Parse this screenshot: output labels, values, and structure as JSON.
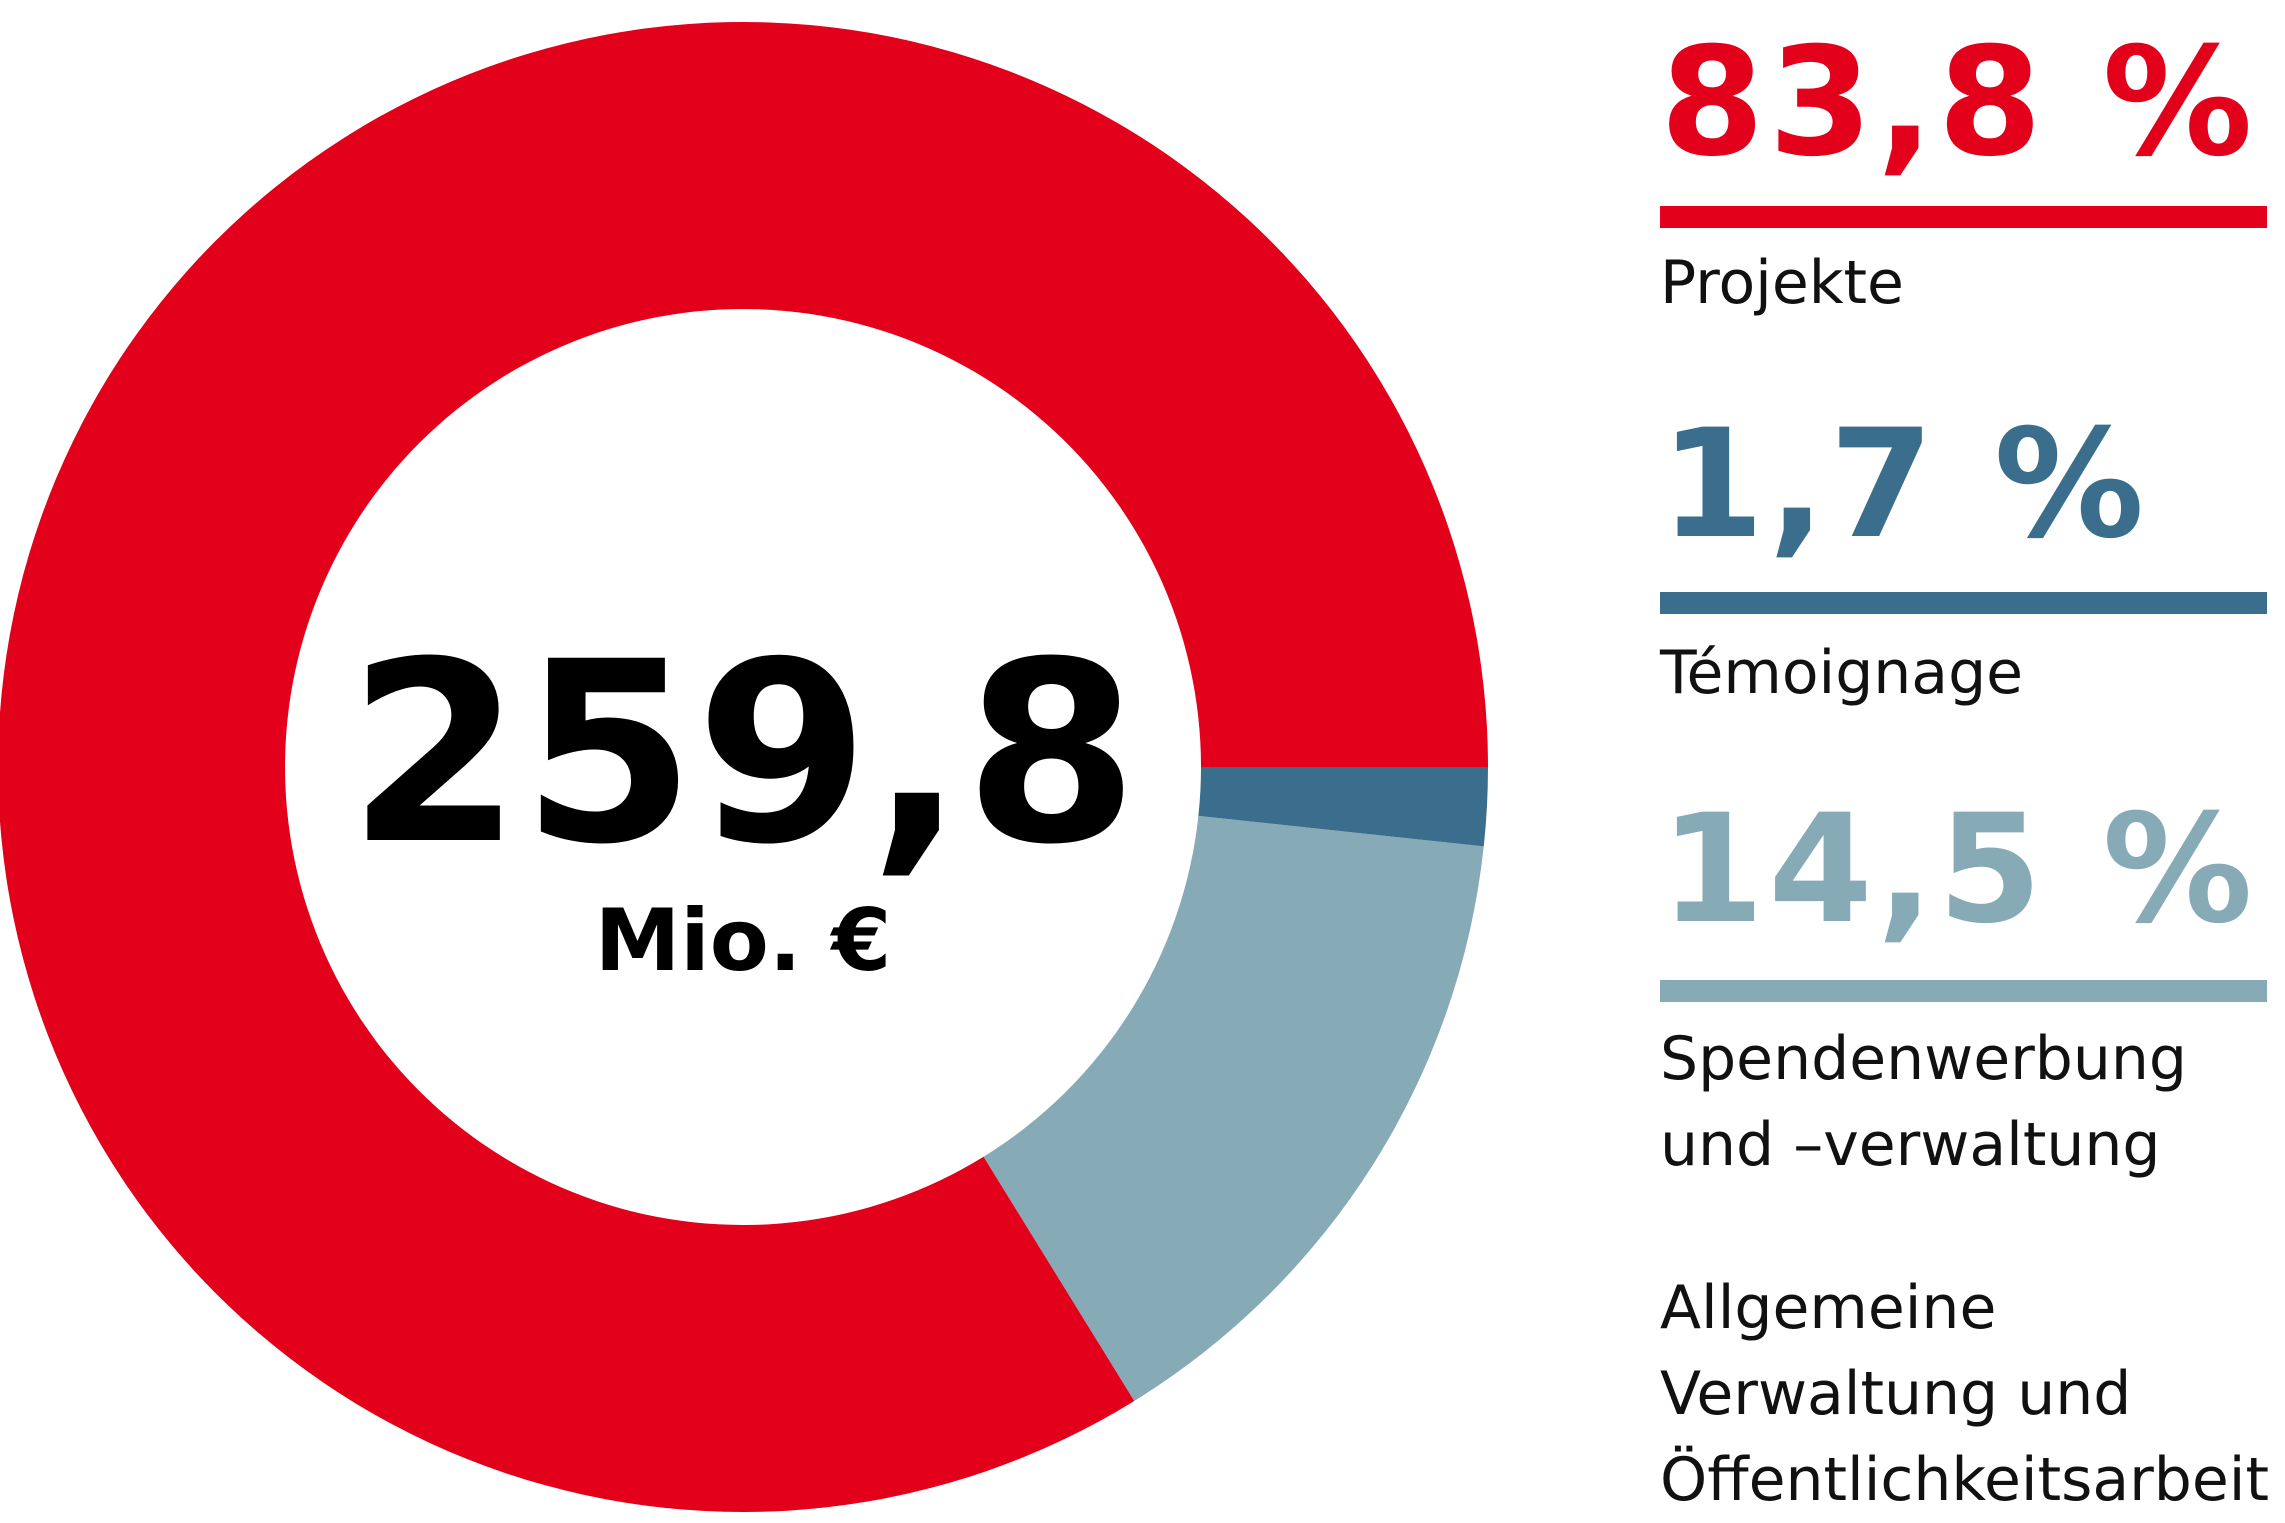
{
  "chart_data": {
    "type": "donut",
    "center_label": "259,8",
    "center_sublabel": "Mio. €",
    "categories": [
      "Projekte",
      "Témoignage",
      "Spendenwerbung\nund –verwaltung",
      "Allgemeine\nVerwaltung und\nÖffentlichkeitsarbeit"
    ],
    "values": [
      83.8,
      1.7,
      14.5,
      null
    ],
    "value_labels": [
      "83,8 %",
      "1,7 %",
      "14,5 %",
      null
    ],
    "colors": [
      "#e2001a",
      "#3a6e8c",
      "#86aab6",
      null
    ]
  }
}
